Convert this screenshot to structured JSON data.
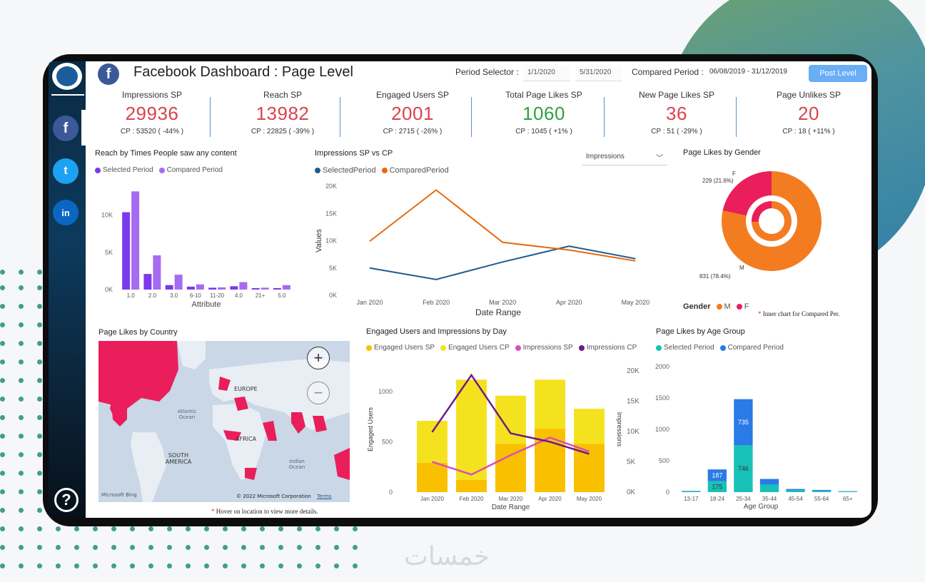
{
  "app": {
    "title": "Facebook Dashboard : Page Level",
    "period_selector_label": "Period Selector :",
    "period_start": "1/1/2020",
    "period_end": "5/31/2020",
    "compared_period_label": "Compared Period :",
    "compared_period_value": "06/08/2019 - 31/12/2019",
    "post_level_button": "Post Level"
  },
  "sidebar": {
    "items": [
      {
        "name": "facebook",
        "glyph": "f",
        "color": "#3b5998"
      },
      {
        "name": "twitter",
        "glyph": "t",
        "color": "#1da1f2"
      },
      {
        "name": "linkedin",
        "glyph": "in",
        "color": "#0a66c2"
      }
    ],
    "help_glyph": "?"
  },
  "kpis": [
    {
      "label": "Impressions SP",
      "value": "29936",
      "cp": "CP : 53520 ( -44% )",
      "color": "#d9434b"
    },
    {
      "label": "Reach SP",
      "value": "13982",
      "cp": "CP : 22825 ( -39% )",
      "color": "#d9434b"
    },
    {
      "label": "Engaged Users SP",
      "value": "2001",
      "cp": "CP : 2715 ( -26% )",
      "color": "#d9434b"
    },
    {
      "label": "Total Page Likes SP",
      "value": "1060",
      "cp": "CP : 1045 ( +1% )",
      "color": "#2ea043"
    },
    {
      "label": "New Page Likes SP",
      "value": "36",
      "cp": "CP : 51 ( -29% )",
      "color": "#d9434b"
    },
    {
      "label": "Page Unlikes SP",
      "value": "20",
      "cp": "CP : 18 ( +11% )",
      "color": "#d9434b"
    }
  ],
  "reach_chart": {
    "title": "Reach by Times People saw any content",
    "legend": [
      "Selected Period",
      "Compared Period"
    ],
    "colors": [
      "#7c3aed",
      "#a56bf0"
    ],
    "xlabel": "Attribute",
    "y_ticks": [
      "0K",
      "5K",
      "10K"
    ],
    "categories": [
      "1.0",
      "2.0",
      "3.0",
      "6-10",
      "11-20",
      "4.0",
      "21+",
      "5.0"
    ]
  },
  "impressions_chart": {
    "title": "Impressions SP vs CP",
    "dropdown_value": "Impressions",
    "legend": [
      "SelectedPeriod",
      "ComparedPeriod"
    ],
    "colors": [
      "#1f5a91",
      "#e8690c"
    ],
    "ylabel": "Values",
    "xlabel": "Date Range",
    "y_ticks": [
      "0K",
      "5K",
      "10K",
      "15K",
      "20K"
    ],
    "categories": [
      "Jan 2020",
      "Feb 2020",
      "Mar 2020",
      "Apr 2020",
      "May 2020"
    ]
  },
  "gender_chart": {
    "title": "Page Likes by Gender",
    "label_f_name": "F",
    "label_f": "229 (21.6%)",
    "label_m_name": "M",
    "label_m": "831 (78.4%)",
    "legend_title": "Gender",
    "legend": [
      "M",
      "F"
    ],
    "colors": [
      "#f47c20",
      "#ea1e5a"
    ],
    "note": "Inner chart for Compared Per."
  },
  "map": {
    "title": "Page Likes by Country",
    "labels": [
      "EUROPE",
      "Atlantic Ocean",
      "AFRICA",
      "SOUTH AMERICA",
      "Indian Ocean"
    ],
    "bing": "Microsoft Bing",
    "copyright": "© 2022 Microsoft Corporation",
    "terms": "Terms",
    "note": "Hover on location to view more details.",
    "zoom_in": "+",
    "zoom_out": "−"
  },
  "engaged_chart": {
    "title": "Engaged Users and Impressions by Day",
    "legend": [
      "Engaged Users SP",
      "Engaged Users CP",
      "Impressions SP",
      "Impressions CP"
    ],
    "colors": [
      "#f9c000",
      "#f5e21f",
      "#d94fb5",
      "#6a1b8a"
    ],
    "ylabel": "Engaged Users",
    "y2label": "Impressions",
    "xlabel": "Date Range",
    "y_ticks": [
      "0",
      "500",
      "1000"
    ],
    "y2_ticks": [
      "0K",
      "5K",
      "10K",
      "15K",
      "20K"
    ],
    "categories": [
      "Jan 2020",
      "Feb 2020",
      "Mar 2020",
      "Apr 2020",
      "May 2020"
    ]
  },
  "age_chart": {
    "title": "Page Likes by Age Group",
    "legend": [
      "Selected Period",
      "Compared Period"
    ],
    "colors": [
      "#18c1b8",
      "#2a7ae8"
    ],
    "xlabel": "Age Group",
    "y_ticks": [
      "0",
      "500",
      "1000",
      "1500",
      "2000"
    ],
    "categories": [
      "13-17",
      "18-24",
      "25-34",
      "35-44",
      "45-54",
      "55-64",
      "65+"
    ],
    "labels": {
      "18-24_cp": "187",
      "18-24_sp": "175",
      "25-34_cp": "735",
      "25-34_sp": "746"
    }
  },
  "chart_data": [
    {
      "type": "bar",
      "title": "Reach by Times People saw any content",
      "xlabel": "Attribute",
      "categories": [
        "1.0",
        "2.0",
        "3.0",
        "6-10",
        "11-20",
        "4.0",
        "21+",
        "5.0"
      ],
      "series": [
        {
          "name": "Selected Period",
          "values": [
            10400,
            2100,
            600,
            400,
            250,
            450,
            200,
            200
          ]
        },
        {
          "name": "Compared Period",
          "values": [
            13200,
            4600,
            2000,
            700,
            300,
            1000,
            250,
            600
          ]
        }
      ],
      "ylim": [
        0,
        14000
      ]
    },
    {
      "type": "line",
      "title": "Impressions SP vs CP",
      "xlabel": "Date Range",
      "ylabel": "Values",
      "categories": [
        "Jan 2020",
        "Feb 2020",
        "Mar 2020",
        "Apr 2020",
        "May 2020"
      ],
      "series": [
        {
          "name": "SelectedPeriod",
          "values": [
            5000,
            2900,
            6100,
            9000,
            6700
          ]
        },
        {
          "name": "ComparedPeriod",
          "values": [
            9900,
            19300,
            9700,
            8300,
            6300
          ]
        }
      ],
      "ylim": [
        0,
        20000
      ]
    },
    {
      "type": "pie",
      "title": "Page Likes by Gender",
      "categories": [
        "M",
        "F"
      ],
      "values": [
        831,
        229
      ],
      "inner_values": [
        780,
        270
      ]
    },
    {
      "type": "bar",
      "title": "Engaged Users and Impressions by Day",
      "xlabel": "Date Range",
      "ylabel": "Engaged Users",
      "y2label": "Impressions",
      "categories": [
        "Jan 2020",
        "Feb 2020",
        "Mar 2020",
        "Apr 2020",
        "May 2020"
      ],
      "series": [
        {
          "name": "Engaged Users SP",
          "values": [
            290,
            120,
            480,
            630,
            480
          ]
        },
        {
          "name": "Engaged Users CP",
          "values": [
            710,
            1120,
            960,
            1120,
            830
          ]
        },
        {
          "name": "Impressions SP",
          "values": [
            5000,
            2900,
            6100,
            9000,
            6700
          ],
          "axis": "right"
        },
        {
          "name": "Impressions CP",
          "values": [
            9900,
            19300,
            9700,
            8300,
            6300
          ],
          "axis": "right"
        }
      ],
      "ylim": [
        0,
        1250
      ],
      "y2lim": [
        0,
        20000
      ]
    },
    {
      "type": "bar",
      "title": "Page Likes by Age Group",
      "xlabel": "Age Group",
      "categories": [
        "13-17",
        "18-24",
        "25-34",
        "35-44",
        "45-54",
        "55-64",
        "65+"
      ],
      "series": [
        {
          "name": "Selected Period",
          "values": [
            15,
            175,
            746,
            120,
            30,
            20,
            10
          ]
        },
        {
          "name": "Compared Period",
          "values": [
            5,
            187,
            735,
            90,
            20,
            15,
            5
          ]
        }
      ],
      "ylim": [
        0,
        2000
      ]
    }
  ]
}
